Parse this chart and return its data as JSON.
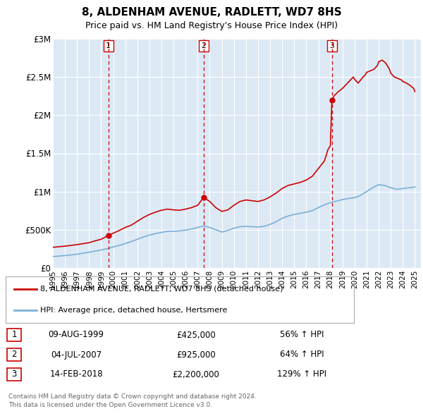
{
  "title": "8, ALDENHAM AVENUE, RADLETT, WD7 8HS",
  "subtitle": "Price paid vs. HM Land Registry's House Price Index (HPI)",
  "background_color": "#ffffff",
  "plot_bg_color": "#dce9f5",
  "grid_color": "#ffffff",
  "xmin": 1995.0,
  "xmax": 2025.5,
  "ymin": 0,
  "ymax": 3000000,
  "yticks": [
    0,
    500000,
    1000000,
    1500000,
    2000000,
    2500000,
    3000000
  ],
  "ytick_labels": [
    "£0",
    "£500K",
    "£1M",
    "£1.5M",
    "£2M",
    "£2.5M",
    "£3M"
  ],
  "xtick_years": [
    1995,
    1996,
    1997,
    1998,
    1999,
    2000,
    2001,
    2002,
    2003,
    2004,
    2005,
    2006,
    2007,
    2008,
    2009,
    2010,
    2011,
    2012,
    2013,
    2014,
    2015,
    2016,
    2017,
    2018,
    2019,
    2020,
    2021,
    2022,
    2023,
    2024,
    2025
  ],
  "sale_color": "#cc0000",
  "hpi_color": "#7bafd4",
  "sale_label": "8, ALDENHAM AVENUE, RADLETT, WD7 8HS (detached house)",
  "hpi_label": "HPI: Average price, detached house, Hertsmere",
  "transactions": [
    {
      "num": 1,
      "date_x": 1999.6,
      "price": 425000,
      "date_str": "09-AUG-1999",
      "pct": "56%"
    },
    {
      "num": 2,
      "date_x": 2007.5,
      "price": 925000,
      "date_str": "04-JUL-2007",
      "pct": "64%"
    },
    {
      "num": 3,
      "date_x": 2018.12,
      "price": 2200000,
      "date_str": "14-FEB-2018",
      "pct": "129%"
    }
  ],
  "footnote1": "Contains HM Land Registry data © Crown copyright and database right 2024.",
  "footnote2": "This data is licensed under the Open Government Licence v3.0.",
  "sale_data": [
    [
      1995.0,
      270000
    ],
    [
      1995.5,
      278000
    ],
    [
      1996.0,
      285000
    ],
    [
      1996.5,
      295000
    ],
    [
      1997.0,
      305000
    ],
    [
      1997.5,
      318000
    ],
    [
      1998.0,
      330000
    ],
    [
      1998.5,
      355000
    ],
    [
      1999.0,
      375000
    ],
    [
      1999.6,
      425000
    ],
    [
      2000.0,
      455000
    ],
    [
      2000.5,
      490000
    ],
    [
      2001.0,
      530000
    ],
    [
      2001.5,
      560000
    ],
    [
      2002.0,
      610000
    ],
    [
      2002.5,
      660000
    ],
    [
      2003.0,
      700000
    ],
    [
      2003.5,
      730000
    ],
    [
      2004.0,
      755000
    ],
    [
      2004.5,
      770000
    ],
    [
      2005.0,
      760000
    ],
    [
      2005.5,
      755000
    ],
    [
      2006.0,
      770000
    ],
    [
      2006.5,
      790000
    ],
    [
      2007.0,
      820000
    ],
    [
      2007.5,
      925000
    ],
    [
      2008.0,
      870000
    ],
    [
      2008.5,
      790000
    ],
    [
      2009.0,
      740000
    ],
    [
      2009.5,
      760000
    ],
    [
      2010.0,
      820000
    ],
    [
      2010.5,
      870000
    ],
    [
      2011.0,
      890000
    ],
    [
      2011.5,
      880000
    ],
    [
      2012.0,
      870000
    ],
    [
      2012.5,
      890000
    ],
    [
      2013.0,
      930000
    ],
    [
      2013.5,
      980000
    ],
    [
      2014.0,
      1040000
    ],
    [
      2014.5,
      1080000
    ],
    [
      2015.0,
      1100000
    ],
    [
      2015.5,
      1120000
    ],
    [
      2016.0,
      1150000
    ],
    [
      2016.5,
      1200000
    ],
    [
      2017.0,
      1300000
    ],
    [
      2017.5,
      1400000
    ],
    [
      2017.8,
      1550000
    ],
    [
      2018.0,
      1600000
    ],
    [
      2018.12,
      2200000
    ],
    [
      2018.3,
      2250000
    ],
    [
      2018.6,
      2300000
    ],
    [
      2019.0,
      2350000
    ],
    [
      2019.3,
      2400000
    ],
    [
      2019.6,
      2450000
    ],
    [
      2019.9,
      2500000
    ],
    [
      2020.0,
      2470000
    ],
    [
      2020.3,
      2420000
    ],
    [
      2020.6,
      2480000
    ],
    [
      2020.9,
      2530000
    ],
    [
      2021.0,
      2560000
    ],
    [
      2021.3,
      2580000
    ],
    [
      2021.6,
      2600000
    ],
    [
      2021.9,
      2650000
    ],
    [
      2022.0,
      2700000
    ],
    [
      2022.3,
      2720000
    ],
    [
      2022.6,
      2680000
    ],
    [
      2022.9,
      2600000
    ],
    [
      2023.0,
      2550000
    ],
    [
      2023.3,
      2500000
    ],
    [
      2023.6,
      2480000
    ],
    [
      2023.9,
      2460000
    ],
    [
      2024.0,
      2440000
    ],
    [
      2024.3,
      2420000
    ],
    [
      2024.6,
      2390000
    ],
    [
      2024.9,
      2350000
    ],
    [
      2025.0,
      2310000
    ]
  ],
  "hpi_data": [
    [
      1995.0,
      150000
    ],
    [
      1995.5,
      155000
    ],
    [
      1996.0,
      162000
    ],
    [
      1996.5,
      170000
    ],
    [
      1997.0,
      180000
    ],
    [
      1997.5,
      193000
    ],
    [
      1998.0,
      205000
    ],
    [
      1998.5,
      220000
    ],
    [
      1999.0,
      235000
    ],
    [
      1999.6,
      255000
    ],
    [
      2000.0,
      275000
    ],
    [
      2000.5,
      295000
    ],
    [
      2001.0,
      320000
    ],
    [
      2001.5,
      345000
    ],
    [
      2002.0,
      375000
    ],
    [
      2002.5,
      405000
    ],
    [
      2003.0,
      430000
    ],
    [
      2003.5,
      450000
    ],
    [
      2004.0,
      465000
    ],
    [
      2004.5,
      480000
    ],
    [
      2005.0,
      480000
    ],
    [
      2005.5,
      485000
    ],
    [
      2006.0,
      495000
    ],
    [
      2006.5,
      510000
    ],
    [
      2007.0,
      530000
    ],
    [
      2007.5,
      550000
    ],
    [
      2008.0,
      530000
    ],
    [
      2008.5,
      500000
    ],
    [
      2009.0,
      470000
    ],
    [
      2009.5,
      490000
    ],
    [
      2010.0,
      520000
    ],
    [
      2010.5,
      540000
    ],
    [
      2011.0,
      545000
    ],
    [
      2011.5,
      540000
    ],
    [
      2012.0,
      535000
    ],
    [
      2012.5,
      545000
    ],
    [
      2013.0,
      570000
    ],
    [
      2013.5,
      605000
    ],
    [
      2014.0,
      650000
    ],
    [
      2014.5,
      680000
    ],
    [
      2015.0,
      700000
    ],
    [
      2015.5,
      715000
    ],
    [
      2016.0,
      730000
    ],
    [
      2016.5,
      750000
    ],
    [
      2017.0,
      790000
    ],
    [
      2017.5,
      825000
    ],
    [
      2018.0,
      855000
    ],
    [
      2018.5,
      875000
    ],
    [
      2019.0,
      895000
    ],
    [
      2019.5,
      910000
    ],
    [
      2020.0,
      920000
    ],
    [
      2020.5,
      950000
    ],
    [
      2021.0,
      1000000
    ],
    [
      2021.5,
      1050000
    ],
    [
      2022.0,
      1090000
    ],
    [
      2022.5,
      1080000
    ],
    [
      2023.0,
      1050000
    ],
    [
      2023.5,
      1030000
    ],
    [
      2024.0,
      1040000
    ],
    [
      2024.5,
      1050000
    ],
    [
      2025.0,
      1060000
    ]
  ]
}
